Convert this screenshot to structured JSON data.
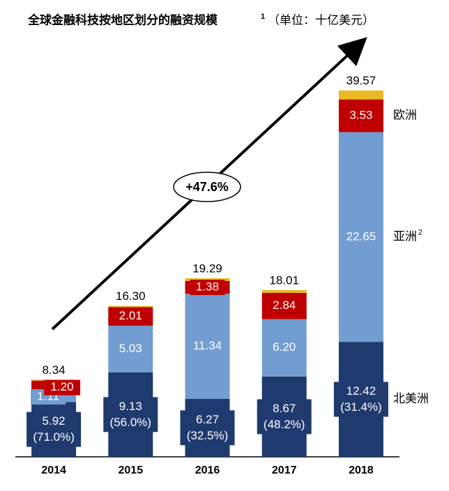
{
  "chart_data": {
    "type": "stacked-bar",
    "title": "全球金融科技按地区划分的融资规模",
    "title_note": "1",
    "subtitle": "（单位：十亿美元）",
    "categories": [
      "2014",
      "2015",
      "2016",
      "2017",
      "2018"
    ],
    "series": [
      {
        "name": "北美洲",
        "color": "#1f3a6e",
        "values": [
          5.92,
          9.13,
          6.27,
          8.67,
          12.42
        ],
        "shares": [
          71.0,
          56.0,
          32.5,
          48.2,
          31.4
        ],
        "share_labels": [
          "(71.0%)",
          "(56.0%)",
          "(32.5%)",
          "(48.2%)",
          "(31.4%)"
        ]
      },
      {
        "name": "亚洲",
        "name_note": "2",
        "color": "#729dd0",
        "values": [
          1.11,
          5.03,
          11.34,
          6.2,
          22.65
        ],
        "value_labels": [
          "1.11",
          "5.03",
          "11.34",
          "6.20",
          "22.65"
        ]
      },
      {
        "name": "欧洲",
        "color": "#c00000",
        "values": [
          1.2,
          2.01,
          1.38,
          2.84,
          3.53
        ],
        "value_labels": [
          "1.20",
          "2.01",
          "1.38",
          "2.84",
          "3.53"
        ]
      },
      {
        "color": "#e8b923",
        "values": [
          0.11,
          0.13,
          0.3,
          0.3,
          0.97
        ]
      }
    ],
    "totals": [
      8.34,
      16.3,
      19.29,
      18.01,
      39.57
    ],
    "total_labels": [
      "8.34",
      "16.30",
      "19.29",
      "18.01",
      "39.57"
    ],
    "annotation": "+47.6%",
    "ylim": [
      0,
      40
    ]
  }
}
